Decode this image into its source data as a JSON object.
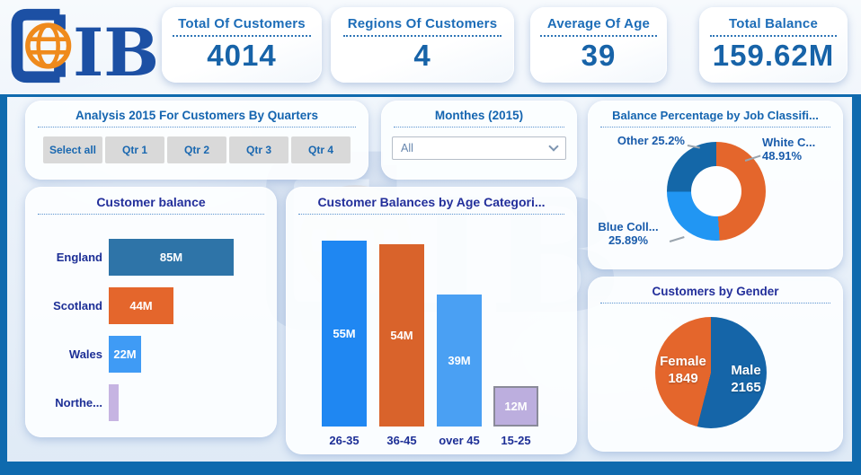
{
  "logo": {
    "letters": "IB"
  },
  "colors": {
    "frame_blue": "#0f6aae",
    "logo_blue": "#1c50a4",
    "logo_orange": "#ef8a1c",
    "title_blue": "#1565b0",
    "title_navy": "#232f9b",
    "button_grey": "#d9d9d9"
  },
  "kpis": [
    {
      "title": "Total Of Customers",
      "value": "4014"
    },
    {
      "title": "Regions Of Customers",
      "value": "4"
    },
    {
      "title": "Average Of Age",
      "value": "39"
    },
    {
      "title": "Total Balance",
      "value": "159.62M"
    }
  ],
  "quarters": {
    "title": "Analysis 2015 For Customers By Quarters",
    "buttons": [
      "Select all",
      "Qtr 1",
      "Qtr 2",
      "Qtr 3",
      "Qtr 4"
    ]
  },
  "months": {
    "title": "Monthes (2015)",
    "selected": "All"
  },
  "chart_data": [
    {
      "id": "customer_balance_by_region",
      "type": "bar",
      "orientation": "horizontal",
      "title": "Customer balance",
      "categories": [
        "England",
        "Scotland",
        "Wales",
        "Northe..."
      ],
      "values": [
        85,
        44,
        22,
        7
      ],
      "value_labels": [
        "85M",
        "44M",
        "22M",
        ""
      ],
      "colors": [
        "#2e74a8",
        "#e4662c",
        "#3f9bf5",
        "#c6b4e2"
      ],
      "xlim": [
        0,
        85
      ],
      "unit": "M",
      "grid": false,
      "legend": "none"
    },
    {
      "id": "balance_by_age",
      "type": "bar",
      "orientation": "vertical",
      "title": "Customer Balances by Age Categori...",
      "categories": [
        "26-35",
        "36-45",
        "over 45",
        "15-25"
      ],
      "values": [
        55,
        54,
        39,
        12
      ],
      "value_labels": [
        "55M",
        "54M",
        "39M",
        "12M"
      ],
      "colors": [
        "#1f87f2",
        "#d9632b",
        "#4aa0f3",
        "#bcaede"
      ],
      "selected_category": "15-25",
      "ylim": [
        0,
        55
      ],
      "unit": "M",
      "grid": false,
      "legend": "none"
    },
    {
      "id": "balance_by_job",
      "type": "pie",
      "subtype": "donut",
      "title": "Balance Percentage by Job Classifi...",
      "slices": [
        {
          "label": "White C...",
          "pct": 48.91,
          "pct_label": "48.91%",
          "color": "#e4662c"
        },
        {
          "label": "Blue Coll...",
          "pct": 25.89,
          "pct_label": "25.89%",
          "color": "#2196f3"
        },
        {
          "label": "Other",
          "pct": 25.2,
          "pct_label": "25.2%",
          "color": "#1467a8"
        }
      ],
      "legend": "callout-labels"
    },
    {
      "id": "customers_by_gender",
      "type": "pie",
      "title": "Customers  by Gender",
      "slices": [
        {
          "label": "Male",
          "value": 2165,
          "color": "#1565a8"
        },
        {
          "label": "Female",
          "value": 1849,
          "color": "#e4662c"
        }
      ],
      "legend": "inside-labels"
    }
  ]
}
